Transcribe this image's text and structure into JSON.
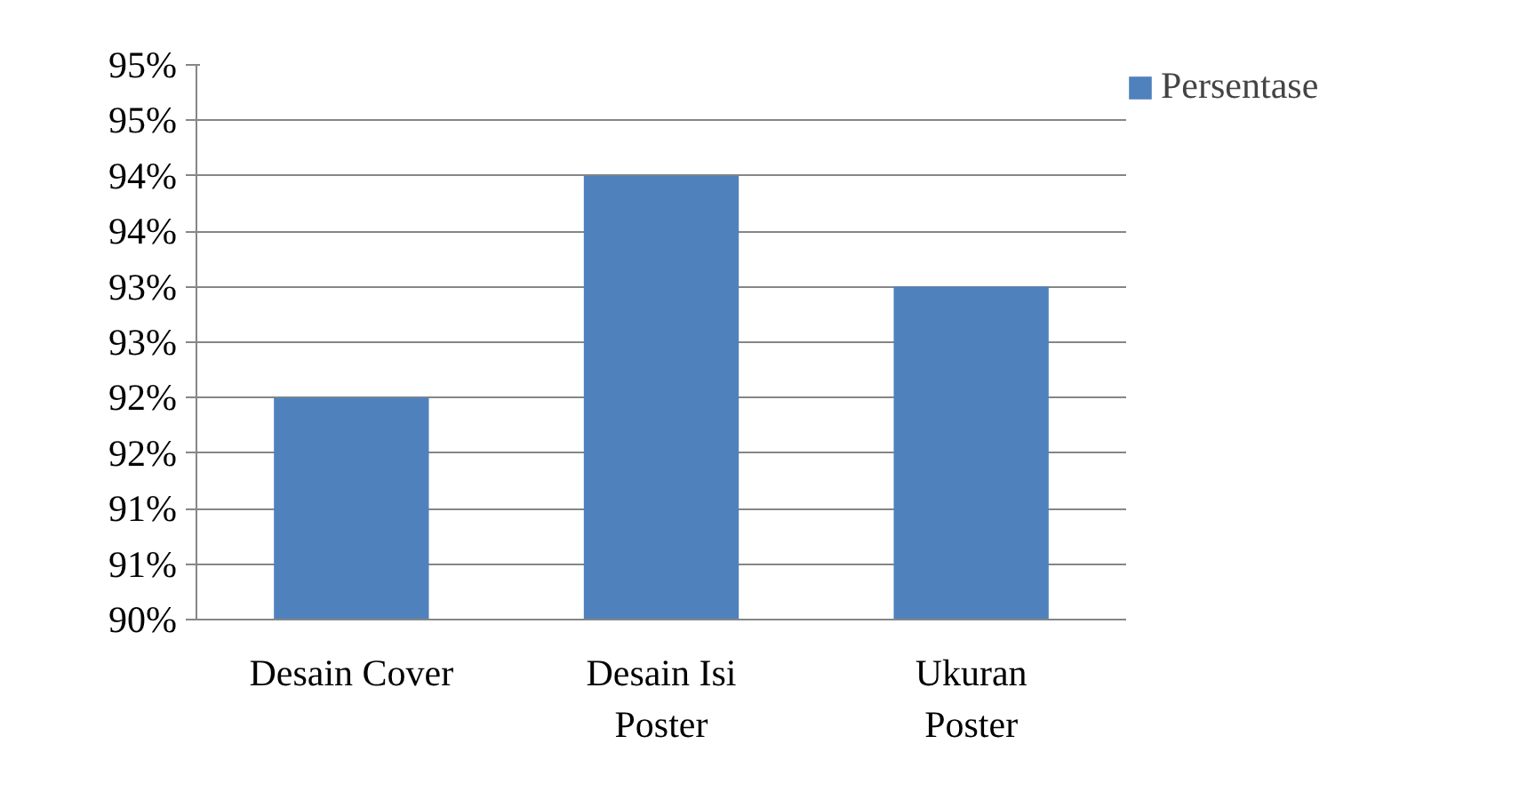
{
  "chart_data": {
    "type": "bar",
    "categories": [
      "Desain Cover",
      "Desain Isi Poster",
      "Ukuran Poster"
    ],
    "series": [
      {
        "name": "Persentase",
        "color": "#4f81bd",
        "values": [
          92,
          94,
          93
        ]
      }
    ],
    "ylim": [
      90,
      95
    ],
    "yticks": [
      {
        "value": 90,
        "label": "90%"
      },
      {
        "value": 90.5,
        "label": "91%"
      },
      {
        "value": 91,
        "label": "91%"
      },
      {
        "value": 91.5,
        "label": "92%"
      },
      {
        "value": 92,
        "label": "92%"
      },
      {
        "value": 92.5,
        "label": "93%"
      },
      {
        "value": 93,
        "label": "93%"
      },
      {
        "value": 93.5,
        "label": "94%"
      },
      {
        "value": 94,
        "label": "94%"
      },
      {
        "value": 94.5,
        "label": "95%"
      },
      {
        "value": 95,
        "label": "95%"
      }
    ],
    "grid": "y",
    "legend": "right"
  }
}
